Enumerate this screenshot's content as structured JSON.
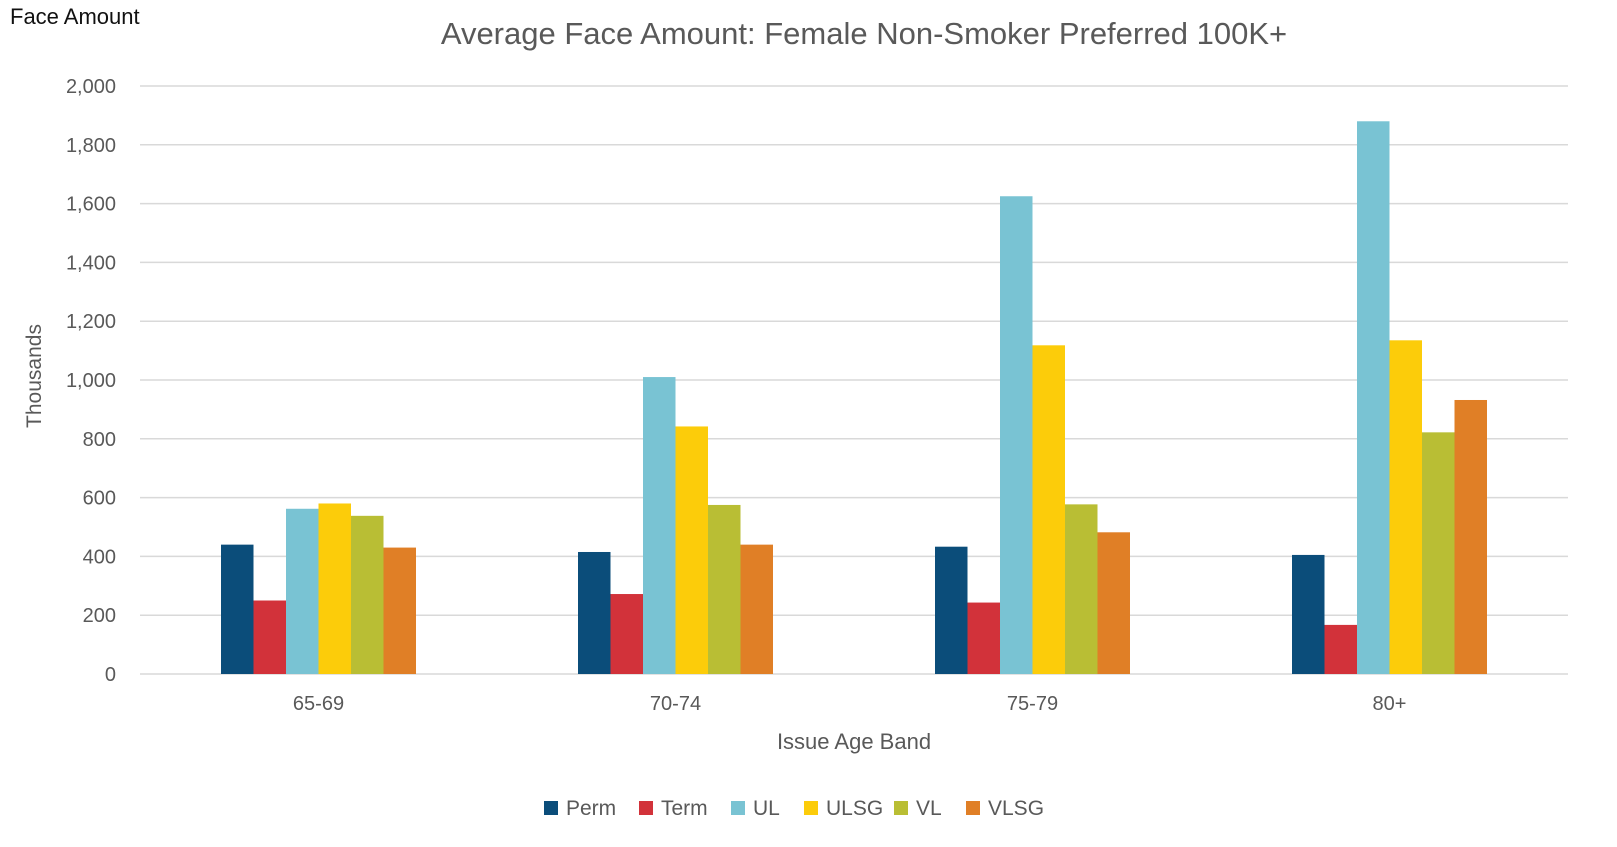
{
  "corner_label": "Face Amount",
  "colors": {
    "Perm": "#0b4d7a",
    "Term": "#d2323a",
    "UL": "#79c3d3",
    "ULSG": "#fccc0a",
    "VL": "#b9be34",
    "VLSG": "#e07f26",
    "grid": "#d9d9d9",
    "axis_text": "#595959"
  },
  "chart_data": {
    "type": "bar",
    "title": "Average Face Amount: Female Non-Smoker Preferred 100K+",
    "xlabel": "Issue Age Band",
    "ylabel": "Thousands",
    "categories": [
      "65-69",
      "70-74",
      "75-79",
      "80+"
    ],
    "ylim": [
      0,
      2000
    ],
    "yticks": [
      0,
      200,
      400,
      600,
      800,
      1000,
      1200,
      1400,
      1600,
      1800,
      2000
    ],
    "ytick_labels": [
      "0",
      "200",
      "400",
      "600",
      "800",
      "1,000",
      "1,200",
      "1,400",
      "1,600",
      "1,800",
      "2,000"
    ],
    "grid": true,
    "legend_position": "bottom",
    "series": [
      {
        "name": "Perm",
        "values": [
          440,
          415,
          433,
          405
        ]
      },
      {
        "name": "Term",
        "values": [
          250,
          272,
          243,
          167
        ]
      },
      {
        "name": "UL",
        "values": [
          562,
          1010,
          1625,
          1880
        ]
      },
      {
        "name": "ULSG",
        "values": [
          580,
          842,
          1118,
          1135
        ]
      },
      {
        "name": "VL",
        "values": [
          538,
          575,
          577,
          822
        ]
      },
      {
        "name": "VLSG",
        "values": [
          430,
          440,
          482,
          932
        ]
      }
    ]
  }
}
